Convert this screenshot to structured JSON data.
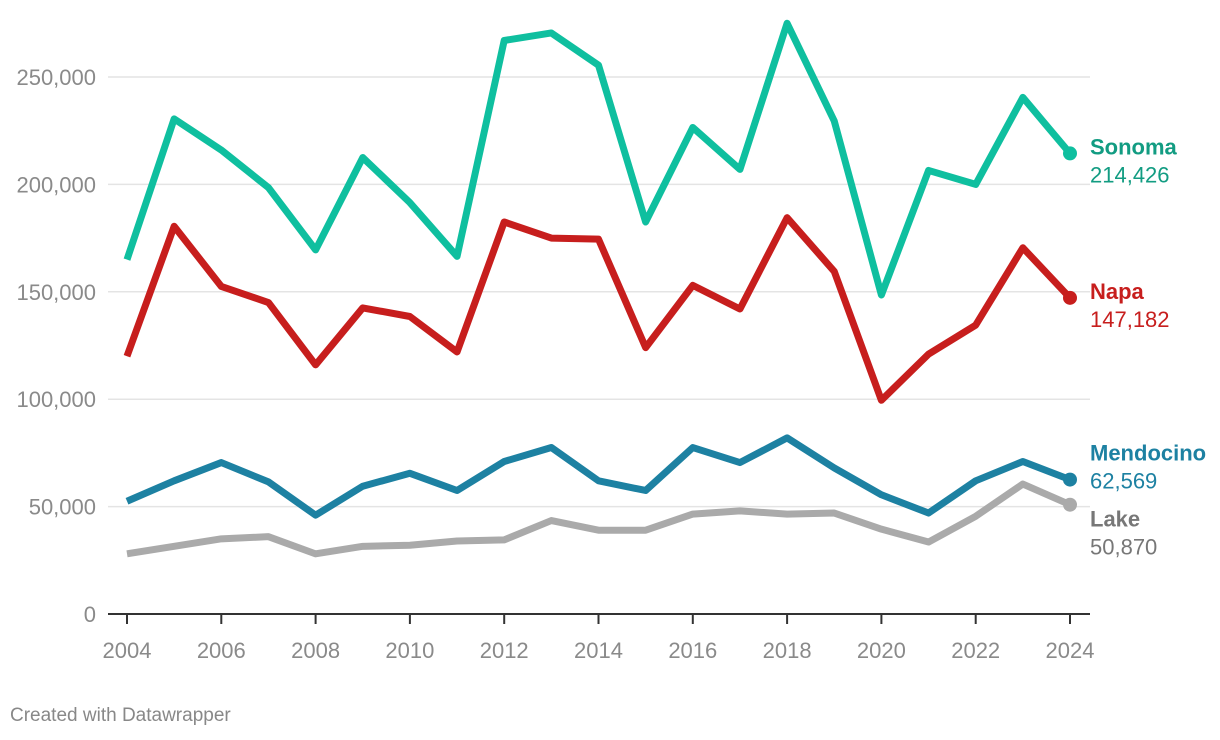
{
  "chart_data": {
    "type": "line",
    "title": "",
    "xlabel": "",
    "ylabel": "",
    "x": [
      2004,
      2005,
      2006,
      2007,
      2008,
      2009,
      2010,
      2011,
      2012,
      2013,
      2014,
      2015,
      2016,
      2017,
      2018,
      2019,
      2020,
      2021,
      2022,
      2023,
      2024
    ],
    "xlim": [
      2004,
      2024
    ],
    "ylim": [
      0,
      275000
    ],
    "x_ticks": [
      2004,
      2006,
      2008,
      2010,
      2012,
      2014,
      2016,
      2018,
      2020,
      2022,
      2024
    ],
    "x_tick_labels": [
      "2004",
      "2006",
      "2008",
      "2010",
      "2012",
      "2014",
      "2016",
      "2018",
      "2020",
      "2022",
      "2024"
    ],
    "y_ticks": [
      0,
      50000,
      100000,
      150000,
      200000,
      250000
    ],
    "y_tick_labels": [
      "0",
      "50,000",
      "100,000",
      "150,000",
      "200,000",
      "250,000"
    ],
    "grid": true,
    "legend": "direct labels at right end of each line",
    "series": [
      {
        "name": "Sonoma",
        "end_label": "214,426",
        "color": "#0fbf9f",
        "label_color": "#129c82",
        "values": [
          165000,
          230500,
          216000,
          198500,
          169500,
          212500,
          191500,
          166500,
          267000,
          270500,
          255500,
          182500,
          226500,
          207000,
          275000,
          229500,
          148500,
          206500,
          200000,
          240500,
          214426
        ]
      },
      {
        "name": "Napa",
        "end_label": "147,182",
        "color": "#c71e1d",
        "label_color": "#c71e1d",
        "values": [
          120000,
          180500,
          152500,
          145000,
          116000,
          142500,
          138500,
          122000,
          182500,
          175000,
          174500,
          124000,
          153000,
          142000,
          184500,
          159500,
          99500,
          121000,
          134500,
          170500,
          147182
        ]
      },
      {
        "name": "Mendocino",
        "end_label": "62,569",
        "color": "#1d81a2",
        "label_color": "#1d81a2",
        "values": [
          52500,
          62000,
          70500,
          61500,
          46000,
          59500,
          65500,
          57500,
          71000,
          77500,
          62000,
          57500,
          77500,
          70500,
          82000,
          68000,
          55500,
          47000,
          62000,
          71000,
          62569
        ]
      },
      {
        "name": "Lake",
        "end_label": "50,870",
        "color": "#aaaaaa",
        "label_color": "#777777",
        "values": [
          28000,
          31500,
          35000,
          36000,
          28000,
          31500,
          32000,
          34000,
          34500,
          43500,
          39000,
          39000,
          46500,
          48000,
          46500,
          47000,
          39500,
          33500,
          45500,
          60500,
          50870
        ]
      }
    ]
  },
  "colors": {
    "grid": "#e4e4e4",
    "axis": "#333333",
    "tick_label": "#8a8a8a"
  },
  "footer": {
    "credit": "Created with Datawrapper"
  }
}
